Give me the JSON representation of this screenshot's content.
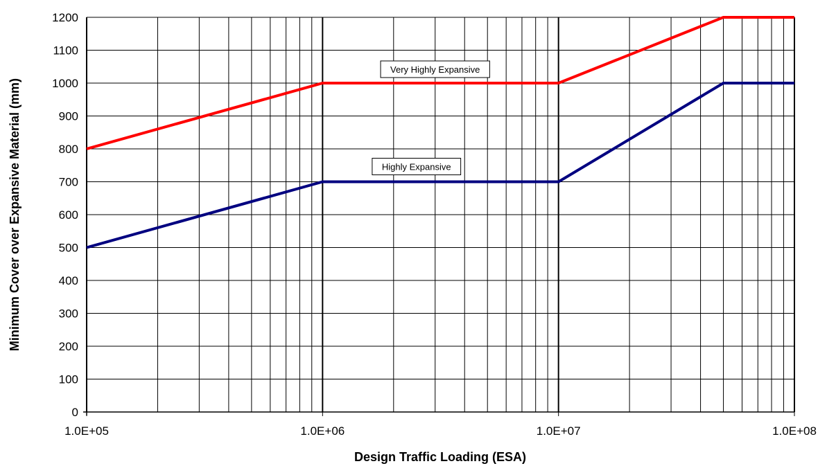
{
  "chart_data": {
    "type": "line",
    "title": "",
    "xlabel": "Design Traffic Loading (ESA)",
    "ylabel": "Minimum Cover over Expansive Material (mm)",
    "x_scale": "log",
    "xlim": [
      100000,
      100000000
    ],
    "ylim": [
      0,
      1200
    ],
    "x_tick_values": [
      100000,
      1000000,
      10000000,
      100000000
    ],
    "x_tick_labels": [
      "1.0E+05",
      "1.0E+06",
      "1.0E+07",
      "1.0E+08"
    ],
    "y_ticks": [
      "0",
      "100",
      "200",
      "300",
      "400",
      "500",
      "600",
      "700",
      "800",
      "900",
      "1000",
      "1100",
      "1200"
    ],
    "grid": true,
    "legend": "none",
    "series": [
      {
        "name": "Very Highly Expansive",
        "color": "#ff0000",
        "x": [
          100000,
          1000000,
          10000000,
          50000000,
          100000000
        ],
        "y": [
          800,
          1000,
          1000,
          1200,
          1200
        ]
      },
      {
        "name": "Highly Expansive",
        "color": "#000080",
        "x": [
          100000,
          1000000,
          10000000,
          50000000,
          100000000
        ],
        "y": [
          500,
          700,
          700,
          1000,
          1000
        ]
      }
    ],
    "annotations": [
      {
        "text": "Very Highly Expansive",
        "series": 0
      },
      {
        "text": "Highly Expansive",
        "series": 1
      }
    ]
  }
}
